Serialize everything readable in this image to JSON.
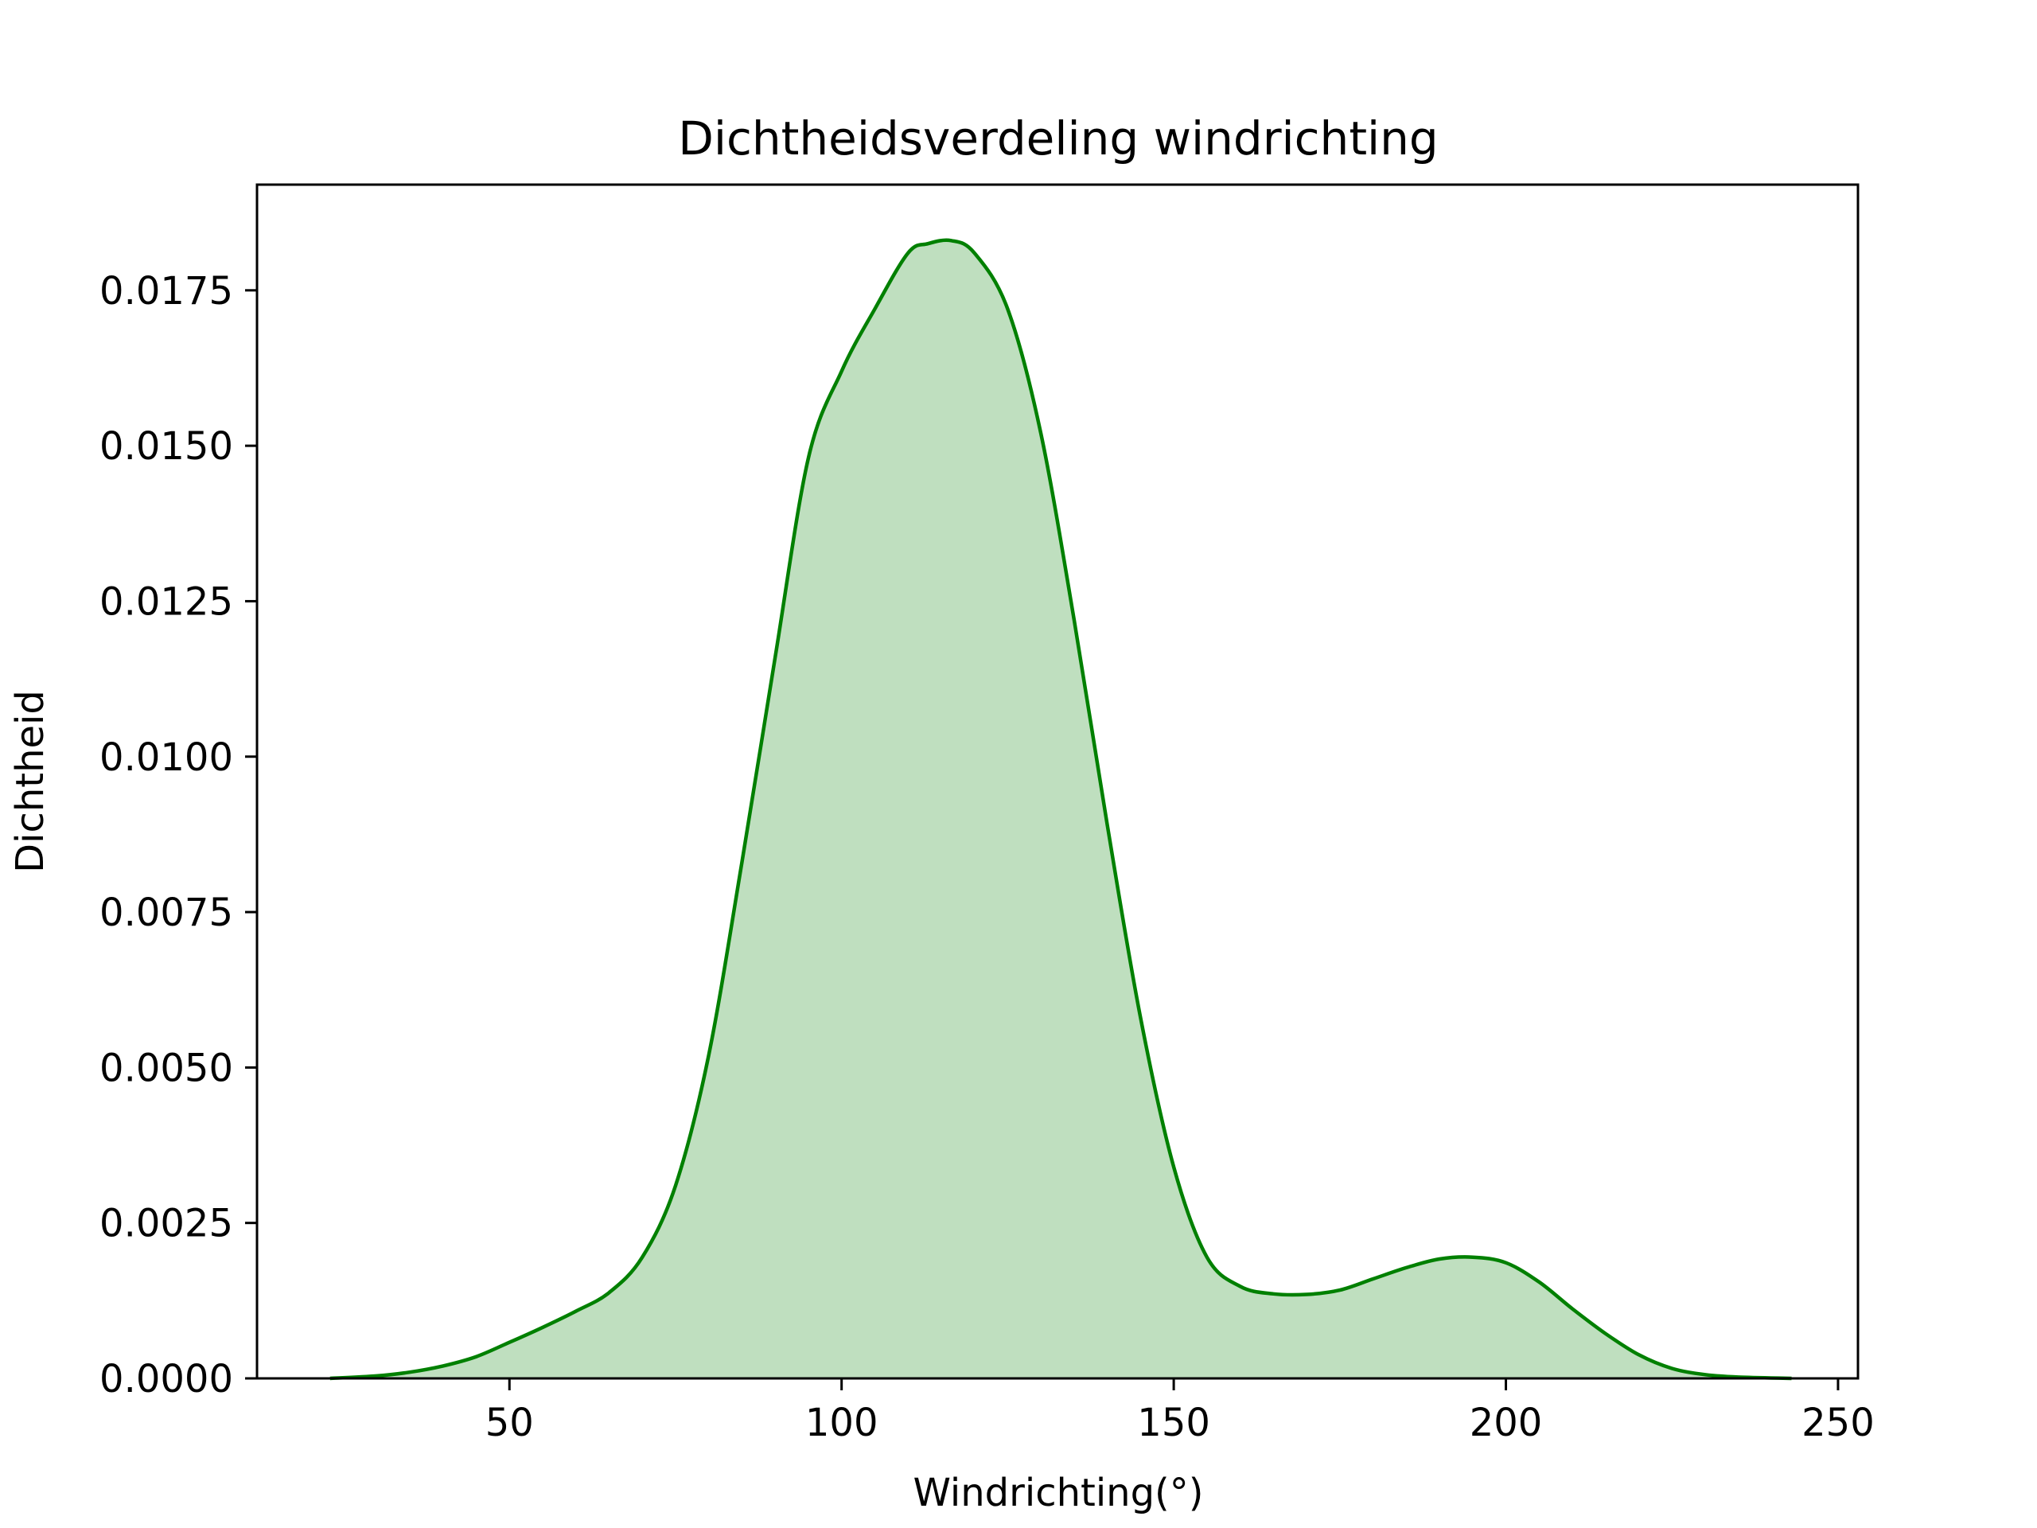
{
  "chart_data": {
    "type": "area",
    "title": "Dichtheidsverdeling windrichting",
    "xlabel": "Windrichting(°)",
    "ylabel": "Dichtheid",
    "xlim": [
      12,
      253
    ],
    "ylim": [
      0,
      0.0192
    ],
    "x_ticks": [
      50,
      100,
      150,
      200,
      250
    ],
    "x_tick_labels": [
      "50",
      "100",
      "150",
      "200",
      "250"
    ],
    "y_ticks": [
      0,
      0.0025,
      0.005,
      0.0075,
      0.01,
      0.0125,
      0.015,
      0.0175
    ],
    "y_tick_labels": [
      "0.0000",
      "0.0025",
      "0.0050",
      "0.0075",
      "0.0100",
      "0.0125",
      "0.0150",
      "0.0175"
    ],
    "grid": false,
    "line_color": "#008000",
    "fill_color": "#008000",
    "fill_opacity": 0.25,
    "series": [
      {
        "x": [
          23,
          30,
          35,
          40,
          45,
          50,
          55,
          60,
          65,
          70,
          75,
          80,
          85,
          90,
          95,
          100,
          105,
          110,
          113,
          116.5,
          120,
          125,
          130,
          135,
          140,
          145,
          150,
          155,
          160,
          165,
          170,
          175,
          180,
          185,
          190,
          195,
          200,
          205,
          210,
          215,
          220,
          225,
          230,
          235,
          243
        ],
        "y": [
          0.0,
          4e-05,
          0.0001,
          0.0002,
          0.00035,
          0.00058,
          0.00082,
          0.00108,
          0.00138,
          0.00195,
          0.0031,
          0.0052,
          0.0083,
          0.0116,
          0.0148,
          0.0162,
          0.0172,
          0.0181,
          0.01825,
          0.0183,
          0.0181,
          0.0172,
          0.0152,
          0.0122,
          0.0089,
          0.0058,
          0.0034,
          0.00195,
          0.00148,
          0.00136,
          0.00135,
          0.00142,
          0.0016,
          0.00178,
          0.00192,
          0.00195,
          0.00186,
          0.00155,
          0.00112,
          0.00072,
          0.00038,
          0.00016,
          6e-05,
          2e-05,
          0.0
        ]
      }
    ]
  }
}
